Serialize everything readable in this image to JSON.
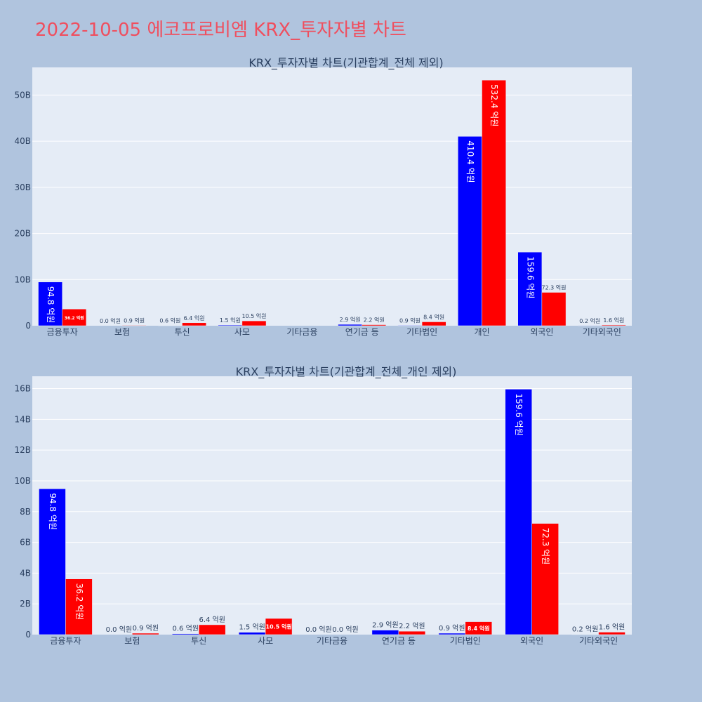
{
  "page_title": "2022-10-05 에코프로비엠 KRX_투자자별 차트",
  "colors": {
    "series1": "#0000ff",
    "series2": "#ff0000",
    "plot_bg": "#e5ecf6",
    "paper_bg": "#b0c4de",
    "title": "#ef4f5f"
  },
  "chart_data": [
    {
      "type": "bar",
      "title": "KRX_투자자별 차트(기관합계_전체 제외)",
      "categories": [
        "금융투자",
        "보험",
        "투신",
        "사모",
        "기타금융",
        "연기금 등",
        "기타법인",
        "개인",
        "외국인",
        "기타외국인"
      ],
      "ylim": [
        0,
        56
      ],
      "yticks": [
        0,
        10,
        20,
        30,
        40,
        50
      ],
      "ytick_labels": [
        "0",
        "10B",
        "20B",
        "30B",
        "40B",
        "50B"
      ],
      "grid": true,
      "series": [
        {
          "values": [
            9.48,
            0.0,
            0.06,
            0.15,
            0.0,
            0.29,
            0.09,
            41.04,
            15.96,
            0.02
          ],
          "labels": [
            "94.8 억원",
            "0.0 억원",
            "0.6 억원",
            "1.5 억원",
            "",
            "2.9 억원",
            "0.9 억원",
            "410.4 억원",
            "159.6 억원",
            "0.2 억원"
          ]
        },
        {
          "values": [
            3.62,
            0.09,
            0.64,
            1.05,
            0.0,
            0.22,
            0.84,
            53.24,
            7.23,
            0.16
          ],
          "labels": [
            "36.2 억원",
            "0.9 억원",
            "6.4 억원",
            "10.5 억원",
            "",
            "2.2 억원",
            "8.4 억원",
            "532.4 억원",
            "72.3 억원",
            "1.6 억원"
          ]
        }
      ]
    },
    {
      "type": "bar",
      "title": "KRX_투자자별 차트(기관합계_전체_개인 제외)",
      "categories": [
        "금융투자",
        "보험",
        "투신",
        "사모",
        "기타금융",
        "연기금 등",
        "기타법인",
        "외국인",
        "기타외국인"
      ],
      "ylim": [
        0,
        16.8
      ],
      "yticks": [
        0,
        2,
        4,
        6,
        8,
        10,
        12,
        14,
        16
      ],
      "ytick_labels": [
        "0",
        "2B",
        "4B",
        "6B",
        "8B",
        "10B",
        "12B",
        "14B",
        "16B"
      ],
      "grid": true,
      "series": [
        {
          "values": [
            9.48,
            0.0,
            0.06,
            0.15,
            0.0,
            0.29,
            0.09,
            15.96,
            0.02
          ],
          "labels": [
            "94.8 억원",
            "0.0 억원",
            "0.6 억원",
            "1.5 억원",
            "0.0 억원",
            "2.9 억원",
            "0.9 억원",
            "159.6 억원",
            "0.2 억원"
          ]
        },
        {
          "values": [
            3.62,
            0.09,
            0.64,
            1.05,
            0.0,
            0.22,
            0.84,
            7.23,
            0.16
          ],
          "labels": [
            "36.2 억원",
            "0.9 억원",
            "6.4 억원",
            "10.5 억원",
            "0.0 억원",
            "2.2 억원",
            "8.4 억원",
            "72.3 억원",
            "1.6 억원"
          ]
        }
      ]
    }
  ]
}
